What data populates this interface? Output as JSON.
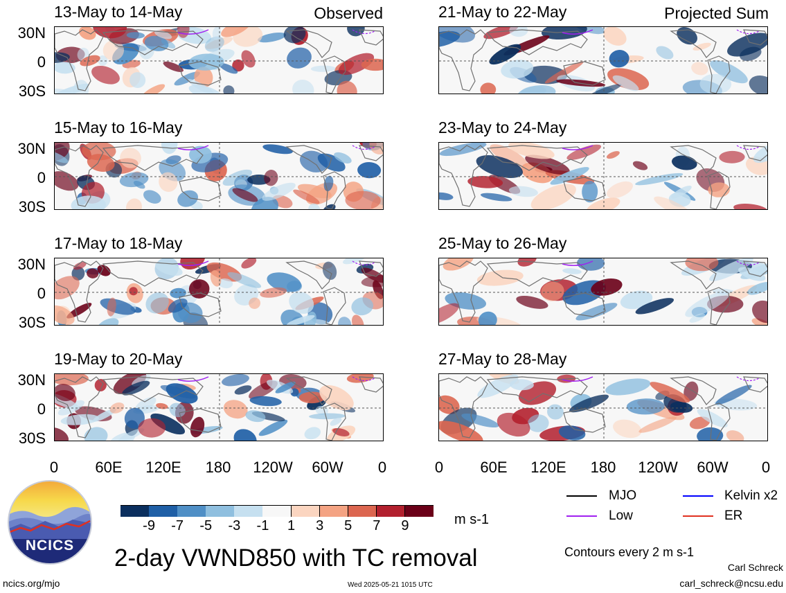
{
  "observed_label": "Observed",
  "projected_label": "Projected Sum",
  "lat_labels": [
    "30N",
    "0",
    "30S"
  ],
  "lon_labels": [
    "0",
    "60E",
    "120E",
    "180",
    "120W",
    "60W",
    "0"
  ],
  "panels_left": [
    {
      "title": "13-May to 14-May"
    },
    {
      "title": "15-May to 16-May"
    },
    {
      "title": "17-May to 18-May"
    },
    {
      "title": "19-May to 20-May"
    }
  ],
  "panels_right": [
    {
      "title": "21-May to 22-May"
    },
    {
      "title": "23-May to 24-May"
    },
    {
      "title": "25-May to 26-May"
    },
    {
      "title": "27-May to 28-May"
    }
  ],
  "colorbar": {
    "labels": [
      "-9",
      "-7",
      "-5",
      "-3",
      "-1",
      "1",
      "3",
      "5",
      "7",
      "9"
    ],
    "colors": [
      "#0b2f5e",
      "#1f5fa6",
      "#4f8fc6",
      "#8fbfdf",
      "#c6e0f0",
      "#f7f7f7",
      "#fbd5c0",
      "#f4a383",
      "#dc6650",
      "#b2202e",
      "#6b0018"
    ],
    "units": "m s-1"
  },
  "legend": {
    "items": [
      {
        "label": "MJO",
        "color": "#000000"
      },
      {
        "label": "Kelvin x2",
        "color": "#0000ff"
      },
      {
        "label": "Low",
        "color": "#a020f0"
      },
      {
        "label": "ER",
        "color": "#e03020"
      }
    ],
    "contours_note": "Contours every 2 m s-1"
  },
  "main_title": "2-day VWND850 with TC removal",
  "logo_text": "NCICS",
  "footer": {
    "left": "ncics.org/mjo",
    "center": "Wed 2025-05-21 1015 UTC",
    "author": "Carl Schreck",
    "email": "carl_schreck@ncsu.edu"
  }
}
